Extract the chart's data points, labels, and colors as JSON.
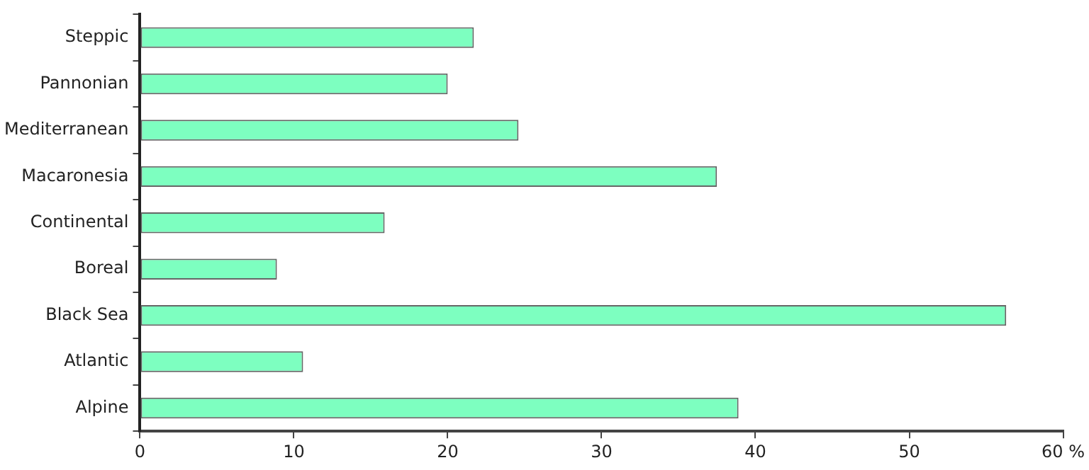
{
  "chart_data": {
    "type": "bar",
    "orientation": "horizontal",
    "categories": [
      "Steppic",
      "Pannonian",
      "Mediterranean",
      "Macaronesia",
      "Continental",
      "Boreal",
      "Black Sea",
      "Atlantic",
      "Alpine"
    ],
    "values": [
      21.7,
      20.0,
      24.6,
      37.5,
      15.9,
      8.9,
      56.3,
      10.6,
      38.9
    ],
    "color": "#7dffc0",
    "xlim": [
      0,
      60
    ],
    "xticks": [
      0,
      10,
      20,
      30,
      40,
      50,
      {
        "value": 60,
        "label": "60 %"
      }
    ],
    "grid": false,
    "legend": false
  }
}
